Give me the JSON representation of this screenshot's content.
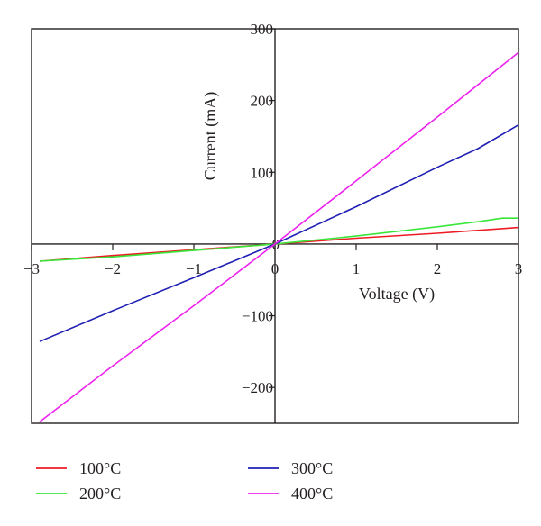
{
  "chart_data": {
    "type": "line",
    "title": "",
    "xlabel": "Voltage (V)",
    "ylabel": "Current (mA)",
    "xlim": [
      -3,
      3
    ],
    "ylim": [
      -250,
      300
    ],
    "xticks": [
      -3,
      -2,
      -1,
      0,
      1,
      2,
      3
    ],
    "yticks": [
      -200,
      -100,
      0,
      100,
      200,
      300
    ],
    "x_tick_labels": [
      "−3",
      "−2",
      "−1",
      "0",
      "1",
      "2",
      "3"
    ],
    "y_tick_labels": [
      "−200",
      "−100",
      "0",
      "100",
      "200",
      "300"
    ],
    "grid": false,
    "legend_position": "bottom",
    "series": [
      {
        "name": "100°C",
        "color": "#ed1c24",
        "x": [
          -2.9,
          -2.0,
          -1.0,
          0,
          1.0,
          2.0,
          3.0
        ],
        "y": [
          -24,
          -16,
          -8,
          0,
          8,
          15,
          23
        ]
      },
      {
        "name": "200°C",
        "color": "#39e639",
        "x": [
          -2.9,
          -2.0,
          -1.0,
          0,
          1.0,
          2.0,
          2.5,
          2.8,
          3.0
        ],
        "y": [
          -24,
          -18,
          -9,
          0,
          11,
          24,
          31,
          36,
          36
        ]
      },
      {
        "name": "300°C",
        "color": "#1f1fb4",
        "x": [
          -2.9,
          -2.0,
          -1.0,
          0,
          1.0,
          2.0,
          2.5,
          3.0
        ],
        "y": [
          -136,
          -93,
          -47,
          0,
          52,
          107,
          133,
          166
        ]
      },
      {
        "name": "400°C",
        "color": "#ee22ee",
        "x": [
          -2.9,
          -2.0,
          -1.0,
          0,
          1.0,
          2.0,
          3.0
        ],
        "y": [
          -248,
          -170,
          -86,
          0,
          88,
          177,
          267
        ]
      }
    ]
  }
}
